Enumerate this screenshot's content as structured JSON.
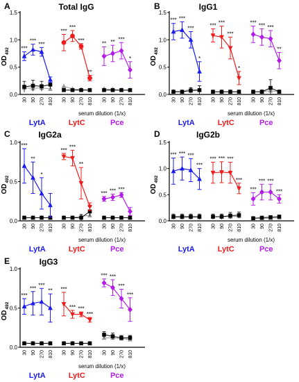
{
  "chart_data": [
    {
      "type": "scatter",
      "panel_letter": "A",
      "title": "Total IgG",
      "xlabel": "serum dilution (1/x)",
      "ylabel_main": "OD",
      "ylabel_sub": "492",
      "ylim": [
        0,
        1.5
      ],
      "yticks": [
        "0.0",
        "0.5",
        "1.0",
        "1.5"
      ],
      "dilutions": [
        "30",
        "90",
        "270",
        "810"
      ],
      "groups": [
        {
          "name": "LytA",
          "color": "#1c1cf0",
          "marker": "triangle",
          "immune": [
            0.7,
            0.82,
            0.78,
            0.27
          ],
          "immune_err": [
            0.08,
            0.1,
            0.08,
            0.05
          ],
          "immune_sig": [
            "***",
            "***",
            "***",
            ""
          ],
          "control": [
            0.14,
            0.16,
            0.15,
            0.18
          ],
          "control_err": [
            0.1,
            0.1,
            0.09,
            0.08
          ],
          "control_grey": [
            0.12,
            0.11,
            0.12,
            0.1
          ]
        },
        {
          "name": "LytC",
          "color": "#ee1c1c",
          "marker": "circle",
          "immune": [
            0.95,
            1.07,
            0.88,
            0.3
          ],
          "immune_err": [
            0.15,
            0.1,
            0.05,
            0.05
          ],
          "immune_sig": [
            "***",
            "***",
            "***",
            "**"
          ],
          "control": [
            0.08,
            0.08,
            0.08,
            0.08
          ],
          "control_err": [
            0.02,
            0.02,
            0.02,
            0.02
          ],
          "control_grey": [
            0.15,
            0.1,
            0.09,
            0.08
          ]
        },
        {
          "name": "Pce",
          "color": "#b31ce8",
          "marker": "diamond",
          "immune": [
            0.7,
            0.75,
            0.8,
            0.45
          ],
          "immune_err": [
            0.17,
            0.15,
            0.15,
            0.15
          ],
          "immune_sig": [
            "**",
            "**",
            "***",
            "*"
          ],
          "control": [
            0.08,
            0.08,
            0.08,
            0.08
          ],
          "control_err": [
            0.02,
            0.02,
            0.02,
            0.02
          ],
          "control_grey": [
            0.1,
            0.09,
            0.08,
            0.08
          ]
        }
      ]
    },
    {
      "type": "scatter",
      "panel_letter": "B",
      "title": "IgG1",
      "xlabel": "serum dilution (1/x)",
      "ylabel_main": "OD",
      "ylabel_sub": "492",
      "ylim": [
        0,
        1.5
      ],
      "yticks": [
        "0.0",
        "0.5",
        "1.0",
        "1.5"
      ],
      "dilutions": [
        "30",
        "90",
        "270",
        "810"
      ],
      "groups": [
        {
          "name": "LytA",
          "color": "#1c1cf0",
          "marker": "triangle",
          "immune": [
            1.15,
            1.18,
            1.0,
            0.42
          ],
          "immune_err": [
            0.15,
            0.15,
            0.15,
            0.18
          ],
          "immune_sig": [
            "***",
            "***",
            "***",
            "*"
          ],
          "control": [
            0.05,
            0.05,
            0.07,
            0.08
          ],
          "control_err": [
            0.02,
            0.02,
            0.05,
            0.08
          ],
          "control_grey": [
            0.06,
            0.05,
            0.1,
            0.08
          ]
        },
        {
          "name": "LytC",
          "color": "#ee1c1c",
          "marker": "triangle-down",
          "immune": [
            1.08,
            1.05,
            0.85,
            0.3
          ],
          "immune_err": [
            0.12,
            0.2,
            0.2,
            0.12
          ],
          "immune_sig": [
            "***",
            "***",
            "***",
            "*"
          ],
          "control": [
            0.05,
            0.05,
            0.05,
            0.05
          ],
          "control_err": [
            0.02,
            0.02,
            0.02,
            0.02
          ],
          "control_grey": [
            0.05,
            0.05,
            0.05,
            0.05
          ]
        },
        {
          "name": "Pce",
          "color": "#b31ce8",
          "marker": "diamond",
          "immune": [
            1.1,
            1.05,
            1.02,
            0.62
          ],
          "immune_err": [
            0.15,
            0.15,
            0.15,
            0.15
          ],
          "immune_sig": [
            "***",
            "***",
            "***",
            "**"
          ],
          "control": [
            0.05,
            0.05,
            0.12,
            0.05
          ],
          "control_err": [
            0.02,
            0.03,
            0.15,
            0.03
          ],
          "control_grey": [
            0.05,
            0.05,
            0.07,
            0.05
          ]
        }
      ]
    },
    {
      "type": "scatter",
      "panel_letter": "C",
      "title": "IgG2a",
      "xlabel": "serum dilution (1/x)",
      "ylabel_main": "OD",
      "ylabel_sub": "492",
      "ylim": [
        0,
        1.0
      ],
      "yticks": [
        "0.0",
        "0.5",
        "1.0"
      ],
      "dilutions": [
        "30",
        "90",
        "270",
        "810"
      ],
      "groups": [
        {
          "name": "LytA",
          "color": "#1c1cf0",
          "marker": "triangle",
          "immune": [
            0.7,
            0.55,
            0.35,
            0.2
          ],
          "immune_err": [
            0.22,
            0.2,
            0.2,
            0.15
          ],
          "immune_sig": [
            "***",
            "**",
            "*",
            ""
          ],
          "control": [
            0.04,
            0.04,
            0.04,
            0.04
          ],
          "control_err": [
            0.02,
            0.02,
            0.02,
            0.02
          ],
          "control_grey": [
            0.04,
            0.04,
            0.04,
            0.04
          ]
        },
        {
          "name": "LytC",
          "color": "#ee1c1c",
          "marker": "triangle-down",
          "immune": [
            0.82,
            0.8,
            0.48,
            0.18
          ],
          "immune_err": [
            0.04,
            0.1,
            0.2,
            0.05
          ],
          "immune_sig": [
            "***",
            "***",
            "**",
            ""
          ],
          "control": [
            0.04,
            0.04,
            0.04,
            0.12
          ],
          "control_err": [
            0.02,
            0.02,
            0.04,
            0.06
          ],
          "control_grey": [
            0.04,
            0.04,
            0.06,
            0.07
          ]
        },
        {
          "name": "Pce",
          "color": "#b31ce8",
          "marker": "diamond",
          "immune": [
            0.28,
            0.3,
            0.33,
            0.12
          ],
          "immune_err": [
            0.03,
            0.04,
            0.03,
            0.05
          ],
          "immune_sig": [
            "***",
            "***",
            "***",
            ""
          ],
          "control": [
            0.04,
            0.04,
            0.04,
            0.04
          ],
          "control_err": [
            0.02,
            0.02,
            0.02,
            0.02
          ],
          "control_grey": [
            0.04,
            0.04,
            0.04,
            0.04
          ]
        }
      ]
    },
    {
      "type": "scatter",
      "panel_letter": "D",
      "title": "IgG2b",
      "xlabel": "serum dilution (1/x)",
      "ylabel_main": "OD",
      "ylabel_sub": "492",
      "ylim": [
        0,
        1.5
      ],
      "yticks": [
        "0.0",
        "0.5",
        "1.0",
        "1.5"
      ],
      "dilutions": [
        "30",
        "90",
        "270",
        "810"
      ],
      "groups": [
        {
          "name": "LytA",
          "color": "#1c1cf0",
          "marker": "triangle",
          "immune": [
            0.95,
            1.0,
            0.97,
            0.8
          ],
          "immune_err": [
            0.25,
            0.22,
            0.22,
            0.2
          ],
          "immune_sig": [
            "***",
            "***",
            "***",
            "***"
          ],
          "control": [
            0.08,
            0.08,
            0.08,
            0.08
          ],
          "control_err": [
            0.05,
            0.05,
            0.05,
            0.05
          ],
          "control_grey": [
            0.07,
            0.07,
            0.07,
            0.07
          ]
        },
        {
          "name": "LytC",
          "color": "#ee1c1c",
          "marker": "triangle-down",
          "immune": [
            0.92,
            0.93,
            0.92,
            0.62
          ],
          "immune_err": [
            0.2,
            0.2,
            0.2,
            0.1
          ],
          "immune_sig": [
            "***",
            "***",
            "***",
            "***"
          ],
          "control": [
            0.08,
            0.08,
            0.1,
            0.11
          ],
          "control_err": [
            0.05,
            0.05,
            0.06,
            0.06
          ],
          "control_grey": [
            0.08,
            0.08,
            0.08,
            0.09
          ]
        },
        {
          "name": "Pce",
          "color": "#b31ce8",
          "marker": "diamond",
          "immune": [
            0.42,
            0.55,
            0.55,
            0.42
          ],
          "immune_err": [
            0.12,
            0.15,
            0.15,
            0.08
          ],
          "immune_sig": [
            "***",
            "***",
            "***",
            "***"
          ],
          "control": [
            0.05,
            0.06,
            0.07,
            0.08
          ],
          "control_err": [
            0.02,
            0.02,
            0.03,
            0.03
          ],
          "control_grey": [
            0.05,
            0.05,
            0.05,
            0.06
          ]
        }
      ]
    },
    {
      "type": "scatter",
      "panel_letter": "E",
      "title": "IgG3",
      "xlabel": "serum dilution (1/x)",
      "ylabel_main": "OD",
      "ylabel_sub": "492",
      "ylim": [
        0,
        1.0
      ],
      "yticks": [
        "0.0",
        "0.5",
        "1.0"
      ],
      "dilutions": [
        "30",
        "90",
        "270",
        "810"
      ],
      "groups": [
        {
          "name": "LytA",
          "color": "#1c1cf0",
          "marker": "triangle",
          "immune": [
            0.52,
            0.56,
            0.58,
            0.5
          ],
          "immune_err": [
            0.1,
            0.15,
            0.17,
            0.18
          ],
          "immune_sig": [
            "***",
            "***",
            "***",
            "**"
          ],
          "control": [
            0.05,
            0.05,
            0.05,
            0.05
          ],
          "control_err": [
            0.02,
            0.02,
            0.02,
            0.02
          ],
          "control_grey": [
            0.05,
            0.05,
            0.05,
            0.05
          ]
        },
        {
          "name": "LytC",
          "color": "#ee1c1c",
          "marker": "triangle-down",
          "immune": [
            0.55,
            0.42,
            0.42,
            0.35
          ],
          "immune_err": [
            0.15,
            0.05,
            0.03,
            0.03
          ],
          "immune_sig": [
            "***",
            "***",
            "***",
            "***"
          ],
          "control": [
            0.05,
            0.05,
            0.05,
            0.05
          ],
          "control_err": [
            0.02,
            0.02,
            0.02,
            0.02
          ],
          "control_grey": [
            0.05,
            0.05,
            0.05,
            0.05
          ]
        },
        {
          "name": "Pce",
          "color": "#b31ce8",
          "marker": "diamond",
          "immune": [
            0.82,
            0.76,
            0.62,
            0.48
          ],
          "immune_err": [
            0.05,
            0.1,
            0.12,
            0.15
          ],
          "immune_sig": [
            "***",
            "***",
            "***",
            "***"
          ],
          "control": [
            0.16,
            0.14,
            0.12,
            0.12
          ],
          "control_err": [
            0.04,
            0.04,
            0.03,
            0.03
          ],
          "control_grey": [
            0.12,
            0.12,
            0.11,
            0.1
          ]
        }
      ]
    }
  ]
}
